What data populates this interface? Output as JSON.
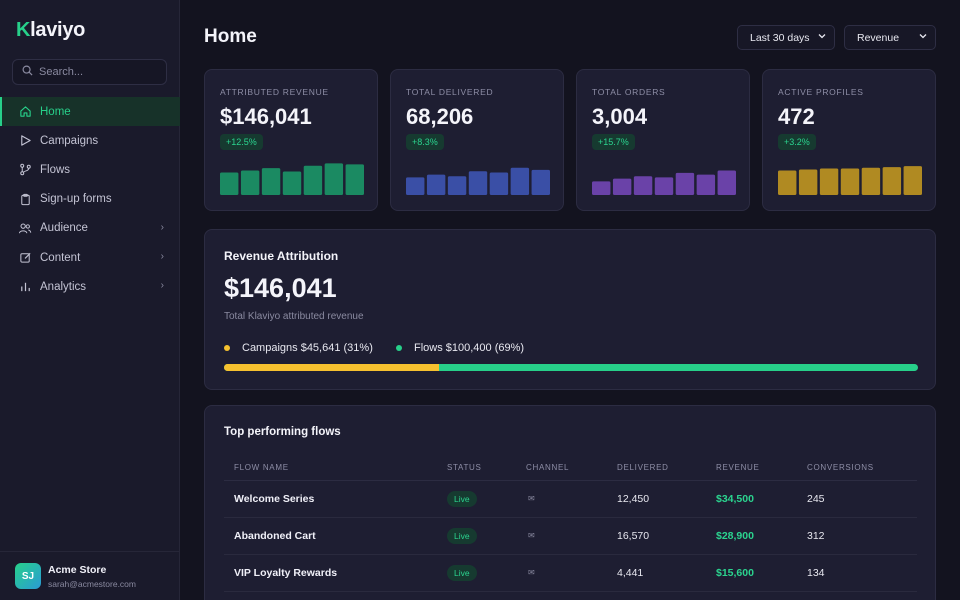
{
  "app": {
    "logo_k": "K",
    "logo_rest": "laviyo"
  },
  "search": {
    "placeholder": "Search..."
  },
  "nav": [
    {
      "label": "Home",
      "icon": "home-icon",
      "active": true
    },
    {
      "label": "Campaigns",
      "icon": "send-icon"
    },
    {
      "label": "Flows",
      "icon": "flows-icon"
    },
    {
      "label": "Sign-up forms",
      "icon": "clipboard-icon"
    },
    {
      "label": "Audience",
      "icon": "users-icon",
      "chevron": true
    },
    {
      "label": "Content",
      "icon": "edit-icon",
      "chevron": true
    },
    {
      "label": "Analytics",
      "icon": "bar-chart-icon",
      "chevron": true
    }
  ],
  "user": {
    "initials": "SJ",
    "name": "Acme Store",
    "email": "sarah@acmestore.com"
  },
  "header": {
    "title": "Home",
    "range": "Last 30 days",
    "metric": "Revenue"
  },
  "stats": [
    {
      "label": "Attributed Revenue",
      "value": "$146,041",
      "change": "+12.5%",
      "color": "#1b8a62",
      "bars": [
        0.66,
        0.72,
        0.79,
        0.69,
        0.86,
        0.93,
        0.9
      ]
    },
    {
      "label": "Total Delivered",
      "value": "68,206",
      "change": "+8.3%",
      "color": "#3a4fa6",
      "bars": [
        0.52,
        0.6,
        0.55,
        0.7,
        0.66,
        0.8,
        0.74
      ]
    },
    {
      "label": "Total Orders",
      "value": "3,004",
      "change": "+15.7%",
      "color": "#6a42a8",
      "bars": [
        0.4,
        0.48,
        0.55,
        0.52,
        0.65,
        0.6,
        0.72
      ]
    },
    {
      "label": "Active Profiles",
      "value": "472",
      "change": "+3.2%",
      "color": "#b08a22",
      "bars": [
        0.72,
        0.75,
        0.78,
        0.78,
        0.8,
        0.82,
        0.85
      ]
    }
  ],
  "revenue_attribution": {
    "title": "Revenue Attribution",
    "value": "$146,041",
    "subtitle": "Total Klaviyo attributed revenue",
    "campaigns_label": "Campaigns $45,641 (31%)",
    "flows_label": "Flows $100,400 (69%)",
    "campaigns_color": "#f6c12f",
    "flows_color": "#27d08a",
    "campaigns_share": 0.31
  },
  "top_flows": {
    "title": "Top performing flows",
    "columns": [
      "Flow Name",
      "Status",
      "Channel",
      "Delivered",
      "Revenue",
      "Conversions"
    ],
    "rows": [
      {
        "name": "Welcome Series",
        "status": "Live",
        "channel": "✉",
        "delivered": "12,450",
        "revenue": "$34,500",
        "conversions": "245"
      },
      {
        "name": "Abandoned Cart",
        "status": "Live",
        "channel": "✉",
        "delivered": "16,570",
        "revenue": "$28,900",
        "conversions": "312"
      },
      {
        "name": "VIP Loyalty Rewards",
        "status": "Live",
        "channel": "✉",
        "delivered": "4,441",
        "revenue": "$15,600",
        "conversions": "134"
      }
    ]
  }
}
